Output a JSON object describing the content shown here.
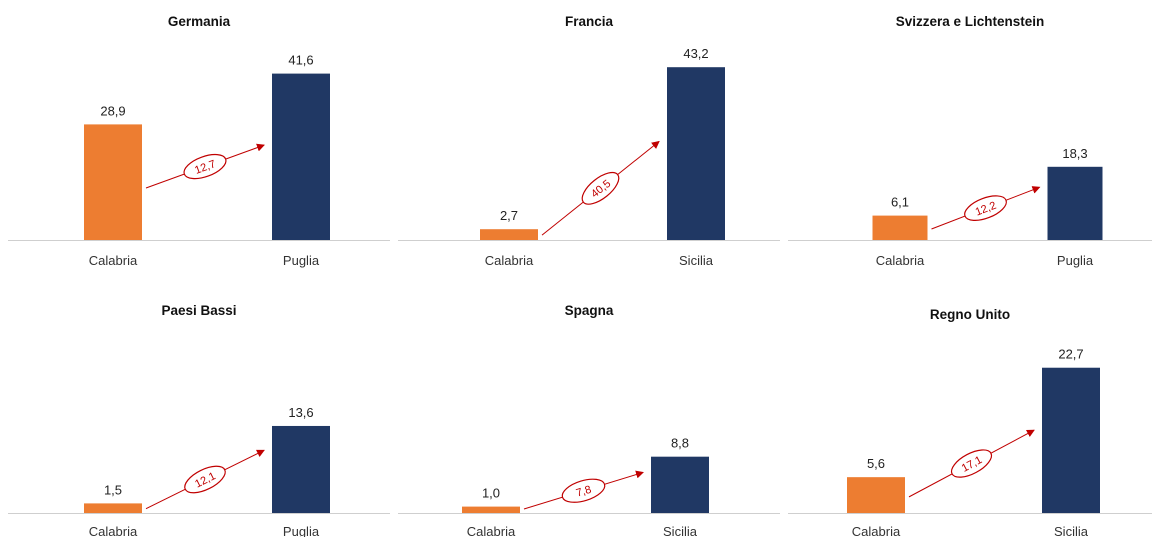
{
  "colors": {
    "left": "#ed7d31",
    "right": "#203864",
    "accent": "#c00000"
  },
  "chart_data": [
    {
      "type": "bar",
      "title": "Germania",
      "categories": [
        "Calabria",
        "Puglia"
      ],
      "values": [
        28.9,
        41.6
      ],
      "value_labels": [
        "28,9",
        "41,6"
      ],
      "difference": 12.7,
      "difference_label": "12,7",
      "ylim": [
        0,
        50
      ]
    },
    {
      "type": "bar",
      "title": "Francia",
      "categories": [
        "Calabria",
        "Sicilia"
      ],
      "values": [
        2.7,
        43.2
      ],
      "value_labels": [
        "2,7",
        "43,2"
      ],
      "difference": 40.5,
      "difference_label": "40,5",
      "ylim": [
        0,
        50
      ]
    },
    {
      "type": "bar",
      "title": "Svizzera e Lichtenstein",
      "categories": [
        "Calabria",
        "Puglia"
      ],
      "values": [
        6.1,
        18.3
      ],
      "value_labels": [
        "6,1",
        "18,3"
      ],
      "difference": 12.2,
      "difference_label": "12,2",
      "ylim": [
        0,
        50
      ]
    },
    {
      "type": "bar",
      "title": "Paesi Bassi",
      "categories": [
        "Calabria",
        "Puglia"
      ],
      "values": [
        1.5,
        13.6
      ],
      "value_labels": [
        "1,5",
        "13,6"
      ],
      "difference": 12.1,
      "difference_label": "12,1",
      "ylim": [
        0,
        30
      ]
    },
    {
      "type": "bar",
      "title": "Spagna",
      "categories": [
        "Calabria",
        "Sicilia"
      ],
      "values": [
        1.0,
        8.8
      ],
      "value_labels": [
        "1,0",
        "8,8"
      ],
      "difference": 7.8,
      "difference_label": "7,8",
      "ylim": [
        0,
        30
      ]
    },
    {
      "type": "bar",
      "title": "Regno Unito",
      "categories": [
        "Calabria",
        "Sicilia"
      ],
      "values": [
        5.6,
        22.7
      ],
      "value_labels": [
        "5,6",
        "22,7"
      ],
      "difference": 17.1,
      "difference_label": "17,1",
      "ylim": [
        0,
        30
      ]
    }
  ]
}
